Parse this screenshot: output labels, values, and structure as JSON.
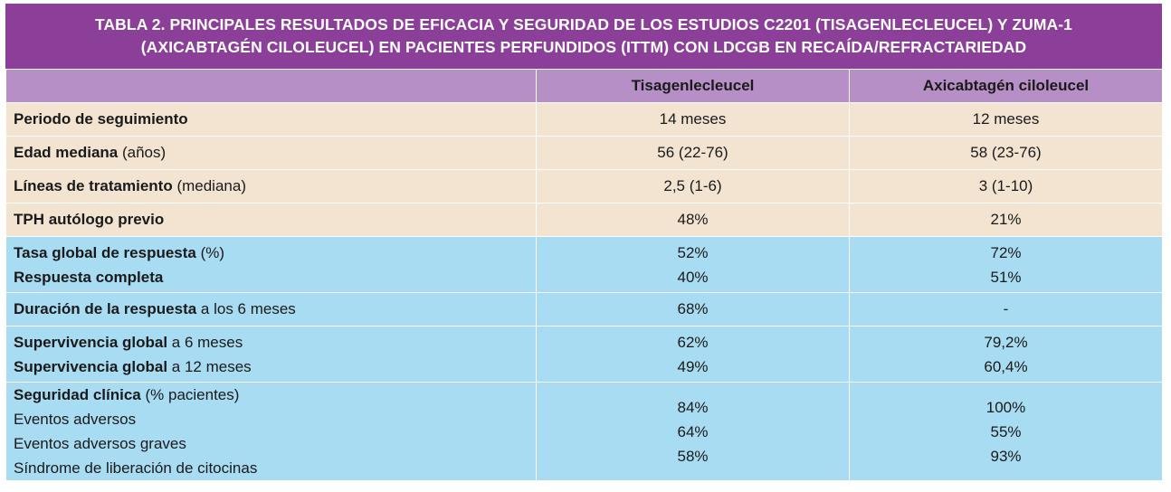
{
  "title": {
    "line1": "TABLA 2. PRINCIPALES RESULTADOS DE EFICACIA Y SEGURIDAD DE LOS ESTUDIOS C2201 (TISAGENLECLEUCEL) Y ZUMA-1",
    "line2": "(AXICABTAGÉN CILOLEUCEL) EN PACIENTES PERFUNDIDOS (ITTM) CON LDCGB EN RECAÍDA/REFRACTARIEDAD"
  },
  "columns": {
    "col1": "Tisagenlecleucel",
    "col2": "Axicabtagén ciloleucel"
  },
  "rows": {
    "seguimiento": {
      "label": "Periodo de seguimiento",
      "v1": "14 meses",
      "v2": "12 meses"
    },
    "edad": {
      "label": "Edad mediana",
      "suffix": " (años)",
      "v1": "56 (22-76)",
      "v2": "58 (23-76)"
    },
    "lineas": {
      "label": "Líneas de tratamiento",
      "suffix": " (mediana)",
      "v1": "2,5 (1-6)",
      "v2": "3 (1-10)"
    },
    "tph": {
      "label": "TPH autólogo previo",
      "v1": "48%",
      "v2": "21%"
    },
    "respuesta": {
      "label_a": "Tasa global de respuesta",
      "suffix_a": " (%)",
      "label_b": "Respuesta completa",
      "v1a": "52%",
      "v1b": "40%",
      "v2a": "72%",
      "v2b": "51%"
    },
    "duracion": {
      "label": "Duración de la respuesta",
      "suffix": " a los 6 meses",
      "v1": "68%",
      "v2": "-"
    },
    "supervivencia": {
      "label_a": "Supervivencia global",
      "suffix_a": " a 6 meses",
      "label_b": "Supervivencia global",
      "suffix_b": " a 12 meses",
      "v1a": "62%",
      "v1b": "49%",
      "v2a": "79,2%",
      "v2b": "60,4%"
    },
    "seguridad": {
      "label": "Seguridad clínica",
      "suffix": " (% pacientes)",
      "sub1": "Eventos adversos",
      "sub2": "Eventos adversos graves",
      "sub3": "Síndrome de liberación de citocinas",
      "v1a": "84%",
      "v1b": "64%",
      "v1c": "58%",
      "v2a": "100%",
      "v2b": "55%",
      "v2c": "93%"
    }
  },
  "colors": {
    "title_bg": "#8b3f98",
    "header_bg": "#b58fc6",
    "beige": "#f2e4d1",
    "blue": "#a8dcf3"
  }
}
